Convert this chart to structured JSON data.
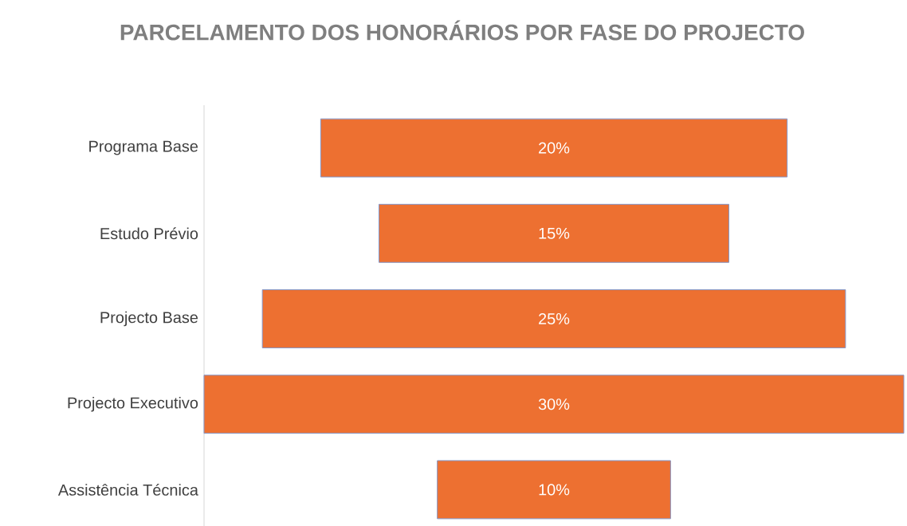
{
  "chart_data": {
    "type": "other",
    "title": "PARCELAMENTO DOS HONORÁRIOS POR FASE DO PROJECTO",
    "categories": [
      "Programa Base",
      "Estudo Prévio",
      "Projecto Base",
      "Projecto Executivo",
      "Assistência Técnica"
    ],
    "values": [
      20,
      15,
      25,
      30,
      10
    ],
    "value_labels": [
      "20%",
      "15%",
      "25%",
      "30%",
      "10%"
    ],
    "color": "#ed7031"
  }
}
